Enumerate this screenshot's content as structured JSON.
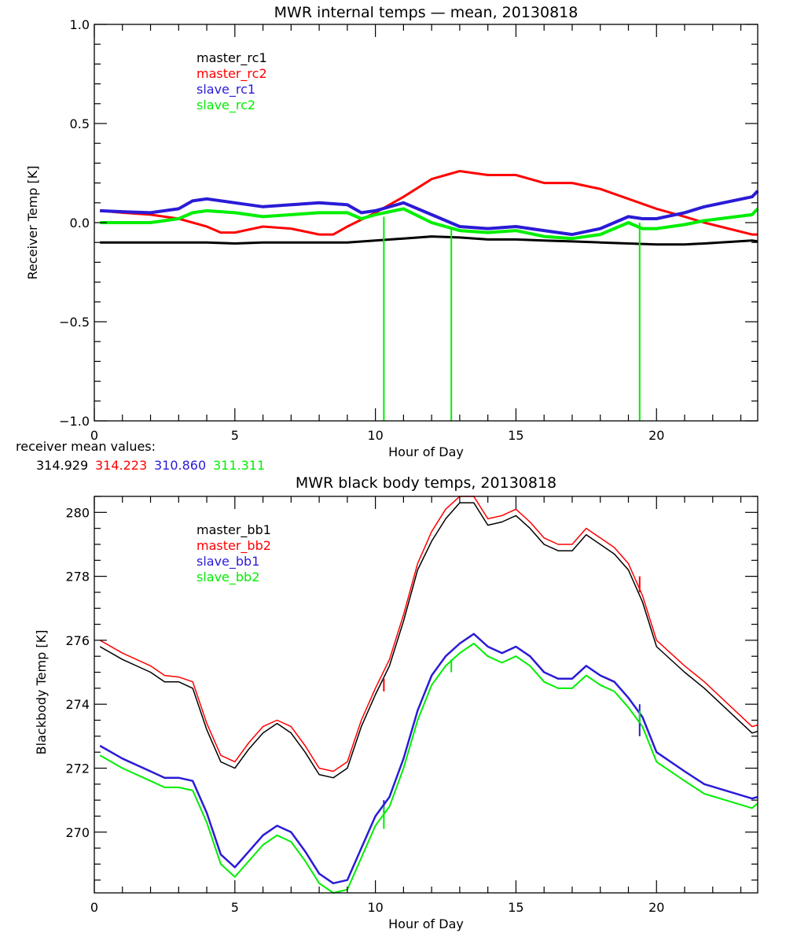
{
  "chart_data": [
    {
      "type": "line",
      "title": "MWR internal temps — mean, 20130818",
      "xlabel": "Hour of Day",
      "ylabel": "Receiver Temp [K]",
      "xlim": [
        0,
        23.6
      ],
      "ylim": [
        -1.0,
        1.0
      ],
      "xticks": [
        0,
        5,
        10,
        15,
        20
      ],
      "xtick_labels": [
        "0",
        "5",
        "10",
        "15",
        "20"
      ],
      "yticks": [
        -1.0,
        -0.5,
        0.0,
        0.5,
        1.0
      ],
      "ytick_labels": [
        "−1.0",
        "−0.5",
        "0.0",
        "0.5",
        "1.0"
      ],
      "grid": false,
      "legend_position": "top-left",
      "series": [
        {
          "name": "master_rc1",
          "color": "#000000",
          "x": [
            0.2,
            1,
            2,
            3,
            4,
            5,
            6,
            7,
            8,
            9,
            10,
            11,
            12,
            13,
            14,
            15,
            16,
            17,
            18,
            19,
            20,
            21,
            21.7,
            23.4,
            23.6
          ],
          "y": [
            -0.1,
            -0.1,
            -0.1,
            -0.1,
            -0.1,
            -0.105,
            -0.1,
            -0.1,
            -0.1,
            -0.1,
            -0.09,
            -0.08,
            -0.07,
            -0.075,
            -0.085,
            -0.085,
            -0.09,
            -0.095,
            -0.1,
            -0.105,
            -0.11,
            -0.11,
            -0.105,
            -0.09,
            -0.095
          ]
        },
        {
          "name": "master_rc2",
          "color": "#ff0000",
          "x": [
            0.2,
            1,
            2,
            3,
            4,
            4.5,
            5,
            6,
            7,
            8,
            8.5,
            9,
            10,
            11,
            12,
            13,
            14,
            15,
            16,
            17,
            18,
            19,
            20,
            21,
            21.7,
            23.4,
            23.6
          ],
          "y": [
            0.06,
            0.05,
            0.04,
            0.02,
            -0.02,
            -0.05,
            -0.05,
            -0.02,
            -0.03,
            -0.06,
            -0.06,
            -0.02,
            0.05,
            0.13,
            0.22,
            0.26,
            0.24,
            0.24,
            0.2,
            0.2,
            0.17,
            0.12,
            0.07,
            0.03,
            0.0,
            -0.06,
            -0.06
          ]
        },
        {
          "name": "slave_rc1",
          "color": "#2a1bd6",
          "x": [
            0.2,
            1,
            2,
            3,
            3.5,
            4,
            5,
            6,
            7,
            8,
            9,
            9.5,
            10,
            11,
            12,
            13,
            14,
            15,
            16,
            17,
            18,
            19,
            19.5,
            20,
            21,
            21.7,
            23.4,
            23.6
          ],
          "y": [
            0.06,
            0.055,
            0.05,
            0.07,
            0.11,
            0.12,
            0.1,
            0.08,
            0.09,
            0.1,
            0.09,
            0.05,
            0.06,
            0.1,
            0.04,
            -0.02,
            -0.03,
            -0.02,
            -0.04,
            -0.06,
            -0.03,
            0.03,
            0.02,
            0.02,
            0.05,
            0.08,
            0.13,
            0.16
          ]
        },
        {
          "name": "slave_rc2",
          "color": "#00ee00",
          "x": [
            0.2,
            1,
            2,
            3,
            3.5,
            4,
            5,
            6,
            7,
            8,
            9,
            9.5,
            10,
            11,
            12,
            13,
            14,
            15,
            16,
            17,
            18,
            19,
            19.5,
            20,
            21,
            21.7,
            23.4,
            23.6
          ],
          "y": [
            0.0,
            0.0,
            0.0,
            0.02,
            0.05,
            0.06,
            0.05,
            0.03,
            0.04,
            0.05,
            0.05,
            0.02,
            0.04,
            0.07,
            0.0,
            -0.04,
            -0.05,
            -0.04,
            -0.07,
            -0.08,
            -0.06,
            0.0,
            -0.03,
            -0.03,
            -0.01,
            0.01,
            0.04,
            0.07
          ]
        }
      ],
      "spikes": [
        {
          "series": "slave_rc2",
          "x": 10.3,
          "y_from": 0.03,
          "y_to": -1.0
        },
        {
          "series": "slave_rc2",
          "x": 12.7,
          "y_from": -0.03,
          "y_to": -1.0
        },
        {
          "series": "slave_rc2",
          "x": 19.4,
          "y_from": 0.0,
          "y_to": -1.0
        }
      ],
      "annotation_label": "receiver mean values:",
      "mean_values": [
        {
          "series": "master_rc1",
          "value": "314.929",
          "color": "#000000"
        },
        {
          "series": "master_rc2",
          "value": "314.223",
          "color": "#ff0000"
        },
        {
          "series": "slave_rc1",
          "value": "310.860",
          "color": "#2a1bd6"
        },
        {
          "series": "slave_rc2",
          "value": "311.311",
          "color": "#00ee00"
        }
      ]
    },
    {
      "type": "line",
      "title": "MWR black body temps, 20130818",
      "xlabel": "Hour of Day",
      "ylabel": "Blackbody Temp [K]",
      "xlim": [
        0,
        23.6
      ],
      "ylim": [
        268.1,
        280.5
      ],
      "xticks": [
        0,
        5,
        10,
        15,
        20
      ],
      "xtick_labels": [
        "0",
        "5",
        "10",
        "15",
        "20"
      ],
      "yticks": [
        270,
        272,
        274,
        276,
        278,
        280
      ],
      "ytick_labels": [
        "270",
        "272",
        "274",
        "276",
        "278",
        "280"
      ],
      "grid": false,
      "legend_position": "top-left",
      "series": [
        {
          "name": "master_bb1",
          "color": "#000000",
          "x": [
            0.2,
            1,
            2,
            2.5,
            3,
            3.5,
            4,
            4.5,
            5,
            5.5,
            6,
            6.5,
            7,
            7.5,
            8,
            8.5,
            9,
            9.5,
            10,
            10.5,
            11,
            11.5,
            12,
            12.5,
            13,
            13.5,
            14,
            14.5,
            15,
            15.5,
            16,
            16.5,
            17,
            17.5,
            18,
            18.5,
            19,
            19.5,
            20,
            21,
            21.7,
            23.4,
            23.6
          ],
          "y": [
            275.8,
            275.4,
            275.0,
            274.7,
            274.7,
            274.5,
            273.2,
            272.2,
            272.0,
            272.6,
            273.1,
            273.4,
            273.1,
            272.5,
            271.8,
            271.7,
            272.0,
            273.3,
            274.3,
            275.2,
            276.6,
            278.2,
            279.1,
            279.8,
            280.3,
            280.3,
            279.6,
            279.7,
            279.9,
            279.5,
            279.0,
            278.8,
            278.8,
            279.3,
            279.0,
            278.7,
            278.2,
            277.2,
            275.8,
            275.0,
            274.5,
            273.1,
            273.15
          ]
        },
        {
          "name": "master_bb2",
          "color": "#ff0000",
          "x": [
            0.2,
            1,
            2,
            2.5,
            3,
            3.5,
            4,
            4.5,
            5,
            5.5,
            6,
            6.5,
            7,
            7.5,
            8,
            8.5,
            9,
            9.5,
            10,
            10.5,
            11,
            11.5,
            12,
            12.5,
            13,
            13.5,
            14,
            14.5,
            15,
            15.5,
            16,
            16.5,
            17,
            17.5,
            18,
            18.5,
            19,
            19.5,
            20,
            21,
            21.7,
            23.4,
            23.6
          ],
          "y": [
            276.0,
            275.6,
            275.2,
            274.9,
            274.85,
            274.7,
            273.4,
            272.4,
            272.2,
            272.8,
            273.3,
            273.5,
            273.3,
            272.7,
            272.0,
            271.9,
            272.2,
            273.5,
            274.5,
            275.4,
            276.8,
            278.4,
            279.4,
            280.1,
            280.5,
            280.5,
            279.8,
            279.9,
            280.1,
            279.7,
            279.2,
            279.0,
            279.0,
            279.5,
            279.2,
            278.9,
            278.4,
            277.4,
            276.0,
            275.2,
            274.7,
            273.3,
            273.35
          ]
        },
        {
          "name": "slave_bb1",
          "color": "#2a1bd6",
          "x": [
            0.2,
            1,
            2,
            2.5,
            3,
            3.5,
            4,
            4.5,
            5,
            5.5,
            6,
            6.5,
            7,
            7.5,
            8,
            8.5,
            9,
            9.5,
            10,
            10.5,
            11,
            11.5,
            12,
            12.5,
            13,
            13.5,
            14,
            14.5,
            15,
            15.5,
            16,
            16.5,
            17,
            17.5,
            18,
            18.5,
            19,
            19.5,
            20,
            21,
            21.7,
            23.4,
            23.6
          ],
          "y": [
            272.7,
            272.3,
            271.9,
            271.7,
            271.7,
            271.6,
            270.6,
            269.3,
            268.9,
            269.4,
            269.9,
            270.2,
            270.0,
            269.4,
            268.7,
            268.4,
            268.5,
            269.5,
            270.5,
            271.1,
            272.3,
            273.8,
            274.9,
            275.5,
            275.9,
            276.2,
            275.8,
            275.6,
            275.8,
            275.5,
            275.0,
            274.8,
            274.8,
            275.2,
            274.9,
            274.7,
            274.2,
            273.6,
            272.5,
            271.9,
            271.5,
            271.05,
            271.1
          ]
        },
        {
          "name": "slave_bb2",
          "color": "#00ee00",
          "x": [
            0.2,
            1,
            2,
            2.5,
            3,
            3.5,
            4,
            4.5,
            5,
            5.5,
            6,
            6.5,
            7,
            7.5,
            8,
            8.5,
            9,
            9.5,
            10,
            10.5,
            11,
            11.5,
            12,
            12.5,
            13,
            13.5,
            14,
            14.5,
            15,
            15.5,
            16,
            16.5,
            17,
            17.5,
            18,
            18.5,
            19,
            19.5,
            20,
            21,
            21.7,
            23.4,
            23.6
          ],
          "y": [
            272.4,
            272.0,
            271.6,
            271.4,
            271.4,
            271.3,
            270.3,
            269.0,
            268.6,
            269.1,
            269.6,
            269.9,
            269.7,
            269.1,
            268.4,
            268.1,
            268.2,
            269.2,
            270.2,
            270.8,
            272.0,
            273.5,
            274.6,
            275.2,
            275.6,
            275.9,
            275.5,
            275.3,
            275.5,
            275.2,
            274.7,
            274.5,
            274.5,
            274.9,
            274.6,
            274.4,
            273.9,
            273.3,
            272.2,
            271.6,
            271.2,
            270.75,
            270.9
          ]
        }
      ],
      "spikes": [
        {
          "series": "master_bb2",
          "x": 10.3,
          "y_from": 274.8,
          "y_to": 274.4
        },
        {
          "series": "slave_bb1",
          "x": 10.3,
          "y_from": 271.0,
          "y_to": 270.6
        },
        {
          "series": "slave_bb2",
          "x": 10.3,
          "y_from": 270.8,
          "y_to": 270.1
        },
        {
          "series": "slave_bb2",
          "x": 12.7,
          "y_from": 275.4,
          "y_to": 275.0
        },
        {
          "series": "master_bb2",
          "x": 19.4,
          "y_from": 278.0,
          "y_to": 277.5
        },
        {
          "series": "slave_bb1",
          "x": 19.4,
          "y_from": 274.0,
          "y_to": 273.0
        },
        {
          "series": "slave_bb2",
          "x": 19.4,
          "y_from": 273.8,
          "y_to": 273.4
        }
      ]
    }
  ]
}
